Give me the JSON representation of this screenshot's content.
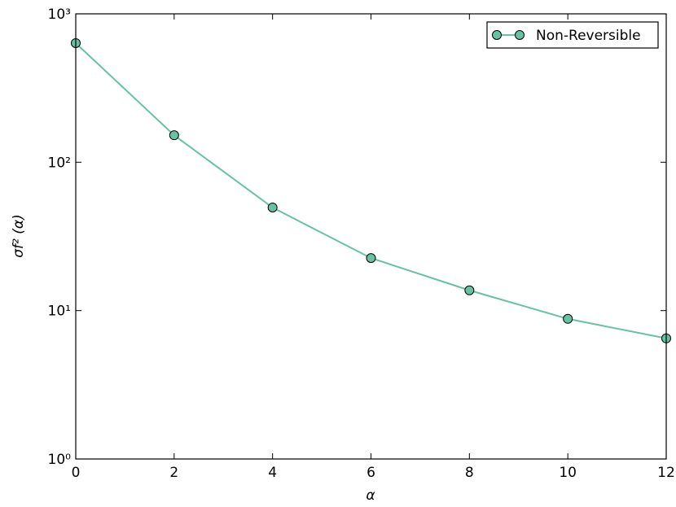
{
  "chart_data": {
    "type": "line",
    "xlabel": "α",
    "ylabel": "σf² (α)",
    "x": [
      0,
      2,
      4,
      6,
      8,
      10,
      12
    ],
    "series": [
      {
        "name": "Non-Reversible",
        "color": "#66c2a5",
        "values": [
          635,
          152,
          49.5,
          22.6,
          13.7,
          8.8,
          6.5
        ]
      }
    ],
    "xlim": [
      0,
      12
    ],
    "xticks": [
      0,
      2,
      4,
      6,
      8,
      10,
      12
    ],
    "ylim": [
      1,
      1000
    ],
    "yscale": "log",
    "yticks": [
      {
        "value": 1,
        "label": "10⁰"
      },
      {
        "value": 10,
        "label": "10¹"
      },
      {
        "value": 100,
        "label": "10²"
      },
      {
        "value": 1000,
        "label": "10³"
      }
    ],
    "legend": "upper right"
  }
}
